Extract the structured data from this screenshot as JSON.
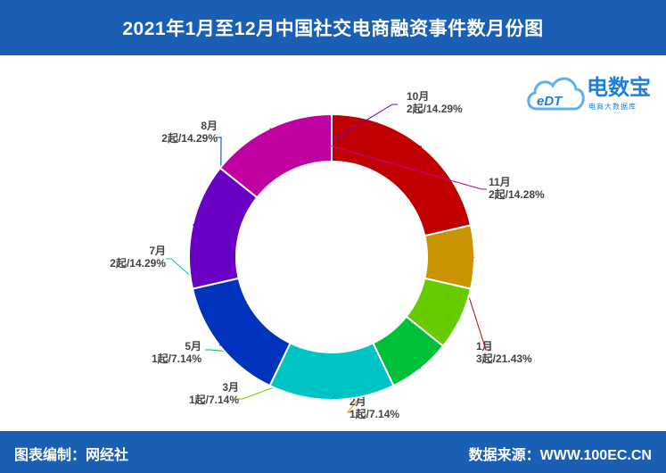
{
  "title": "2021年1月至12月中国社交电商融资事件数月份图",
  "footer": {
    "editor": "图表编制：网经社",
    "source": "数据来源：WWW.100EC.CN"
  },
  "logo": {
    "name": "电数宝",
    "subtitle": "电商大数据库",
    "badge": "eDT"
  },
  "chart_data": {
    "type": "pie",
    "donut": true,
    "legend": "none",
    "slices": [
      {
        "month": "1月",
        "count": 3,
        "label": "3起/21.43%",
        "color": "#c00000"
      },
      {
        "month": "2月",
        "count": 1,
        "label": "1起/7.14%",
        "color": "#c99400"
      },
      {
        "month": "3月",
        "count": 1,
        "label": "1起/7.14%",
        "color": "#66cc00"
      },
      {
        "month": "5月",
        "count": 1,
        "label": "1起/7.14%",
        "color": "#00c03a"
      },
      {
        "month": "7月",
        "count": 2,
        "label": "2起/14.29%",
        "color": "#00c4c4"
      },
      {
        "month": "8月",
        "count": 2,
        "label": "2起/14.29%",
        "color": "#0033bb"
      },
      {
        "month": "10月",
        "count": 2,
        "label": "2起/14.29%",
        "color": "#6a00c4"
      },
      {
        "month": "11月",
        "count": 2,
        "label": "2起/14.28%",
        "color": "#c000a0"
      }
    ]
  }
}
